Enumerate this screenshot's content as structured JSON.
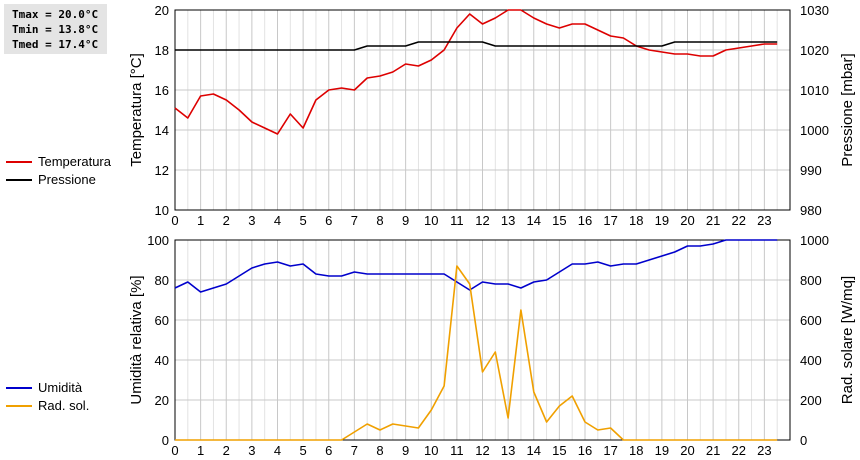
{
  "stats": {
    "tmax": "Tmax = 20.0°C",
    "tmin": "Tmin = 13.8°C",
    "tmed": "Tmed = 17.4°C"
  },
  "chart_data": [
    {
      "type": "line",
      "x_ticks": [
        "0",
        "1",
        "2",
        "3",
        "4",
        "5",
        "6",
        "7",
        "8",
        "9",
        "10",
        "11",
        "12",
        "13",
        "14",
        "15",
        "16",
        "17",
        "18",
        "19",
        "20",
        "21",
        "22",
        "23"
      ],
      "xlim": [
        0,
        24
      ],
      "ylabel_left": "Temperatura [°C]",
      "ylabel_right": "Pressione [mbar]",
      "ylim_left": [
        10,
        20
      ],
      "ylim_right": [
        980,
        1030
      ],
      "yticks_left": [
        "10",
        "12",
        "14",
        "16",
        "18",
        "20"
      ],
      "yticks_right": [
        "980",
        "990",
        "1000",
        "1010",
        "1020",
        "1030"
      ],
      "grid": true,
      "legend_position": "left",
      "series": [
        {
          "name": "Temperatura",
          "axis": "left",
          "color": "#dd0000",
          "x": [
            0,
            0.5,
            1,
            1.5,
            2,
            2.5,
            3,
            3.5,
            4,
            4.5,
            5,
            5.5,
            6,
            6.5,
            7,
            7.5,
            8,
            8.5,
            9,
            9.5,
            10,
            10.5,
            11,
            11.5,
            12,
            12.5,
            13,
            13.5,
            14,
            14.5,
            15,
            15.5,
            16,
            16.5,
            17,
            17.5,
            18,
            18.5,
            19,
            19.5,
            20,
            20.5,
            21,
            21.5,
            22,
            22.5,
            23,
            23.5
          ],
          "y": [
            15.1,
            14.6,
            15.7,
            15.8,
            15.5,
            15.0,
            14.4,
            14.1,
            13.8,
            14.8,
            14.1,
            15.5,
            16.0,
            16.1,
            16.0,
            16.6,
            16.7,
            16.9,
            17.3,
            17.2,
            17.5,
            18.0,
            19.1,
            19.8,
            19.3,
            19.6,
            20.0,
            20.0,
            19.6,
            19.3,
            19.1,
            19.3,
            19.3,
            19.0,
            18.7,
            18.6,
            18.2,
            18.0,
            17.9,
            17.8,
            17.8,
            17.7,
            17.7,
            18.0,
            18.1,
            18.2,
            18.3,
            18.3
          ]
        },
        {
          "name": "Pressione",
          "axis": "right",
          "color": "#000000",
          "x": [
            0,
            1,
            2,
            3,
            4,
            5,
            6,
            7,
            7.5,
            8,
            9,
            9.5,
            10,
            11,
            12,
            12.5,
            13,
            14,
            15,
            16,
            17,
            18,
            19,
            19.5,
            20,
            21,
            22,
            23,
            23.5
          ],
          "y": [
            1020,
            1020,
            1020,
            1020,
            1020,
            1020,
            1020,
            1020,
            1021,
            1021,
            1021,
            1022,
            1022,
            1022,
            1022,
            1021,
            1021,
            1021,
            1021,
            1021,
            1021,
            1021,
            1021,
            1022,
            1022,
            1022,
            1022,
            1022,
            1022
          ]
        }
      ]
    },
    {
      "type": "line",
      "x_ticks": [
        "0",
        "1",
        "2",
        "3",
        "4",
        "5",
        "6",
        "7",
        "8",
        "9",
        "10",
        "11",
        "12",
        "13",
        "14",
        "15",
        "16",
        "17",
        "18",
        "19",
        "20",
        "21",
        "22",
        "23"
      ],
      "xlim": [
        0,
        24
      ],
      "ylabel_left": "Umidità relativa [%]",
      "ylabel_right": "Rad. solare [W/mq]",
      "ylim_left": [
        0,
        100
      ],
      "ylim_right": [
        0,
        1000
      ],
      "yticks_left": [
        "0",
        "20",
        "40",
        "60",
        "80",
        "100"
      ],
      "yticks_right": [
        "0",
        "200",
        "400",
        "600",
        "800",
        "1000"
      ],
      "grid": true,
      "legend_position": "left",
      "series": [
        {
          "name": "Umidità",
          "axis": "left",
          "color": "#0000cc",
          "x": [
            0,
            0.5,
            1,
            1.5,
            2,
            2.5,
            3,
            3.5,
            4,
            4.5,
            5,
            5.5,
            6,
            6.5,
            7,
            7.5,
            8,
            8.5,
            9,
            9.5,
            10,
            10.5,
            11,
            11.5,
            12,
            12.5,
            13,
            13.5,
            14,
            14.5,
            15,
            15.5,
            16,
            16.5,
            17,
            17.5,
            18,
            18.5,
            19,
            19.5,
            20,
            20.5,
            21,
            21.5,
            22,
            22.5,
            23,
            23.5
          ],
          "y": [
            76,
            79,
            74,
            76,
            78,
            82,
            86,
            88,
            89,
            87,
            88,
            83,
            82,
            82,
            84,
            83,
            83,
            83,
            83,
            83,
            83,
            83,
            79,
            75,
            79,
            78,
            78,
            76,
            79,
            80,
            84,
            88,
            88,
            89,
            87,
            88,
            88,
            90,
            92,
            94,
            97,
            97,
            98,
            100,
            100,
            100,
            100,
            100
          ]
        },
        {
          "name": "Rad. sol.",
          "axis": "right",
          "color": "#f0a000",
          "x": [
            0,
            0.5,
            1,
            1.5,
            2,
            2.5,
            3,
            3.5,
            4,
            4.5,
            5,
            5.5,
            6,
            6.5,
            7,
            7.5,
            8,
            8.5,
            9,
            9.5,
            10,
            10.5,
            11,
            11.5,
            12,
            12.5,
            13,
            13.5,
            14,
            14.5,
            15,
            15.5,
            16,
            16.5,
            17,
            17.5,
            18,
            18.5,
            19,
            19.5,
            20,
            20.5,
            21,
            21.5,
            22,
            22.5,
            23,
            23.5
          ],
          "y": [
            0,
            0,
            0,
            0,
            0,
            0,
            0,
            0,
            0,
            0,
            0,
            0,
            0,
            0,
            40,
            80,
            50,
            80,
            70,
            60,
            150,
            270,
            870,
            780,
            340,
            440,
            110,
            650,
            240,
            90,
            170,
            220,
            90,
            50,
            60,
            0,
            0,
            0,
            0,
            0,
            0,
            0,
            0,
            0,
            0,
            0,
            0,
            0
          ]
        }
      ]
    }
  ]
}
